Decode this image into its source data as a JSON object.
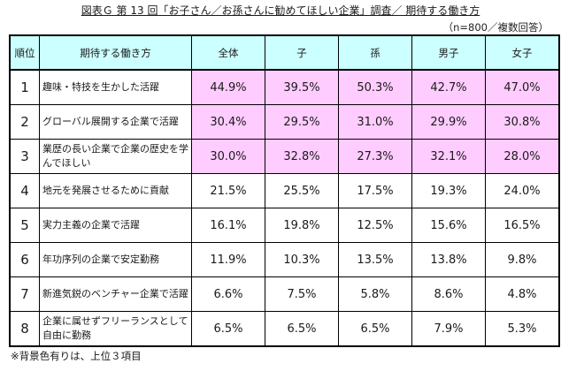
{
  "title": "図表Ｇ 第 13 回「お子さん／お孫さんに勧めてほしい企業」調査／ 期待する働き方",
  "sample_note": "（n=800／複数回答）",
  "table": {
    "headers": [
      "順位",
      "期待する働き方",
      "全体",
      "子",
      "孫",
      "男子",
      "女子"
    ],
    "rows": [
      {
        "rank": "1",
        "item": "趣味・特技を生かした活躍",
        "values": [
          "44.9%",
          "39.5%",
          "50.3%",
          "42.7%",
          "47.0%"
        ],
        "highlight": true
      },
      {
        "rank": "2",
        "item": "グローバル展開する企業で活躍",
        "values": [
          "30.4%",
          "29.5%",
          "31.0%",
          "29.9%",
          "30.8%"
        ],
        "highlight": true
      },
      {
        "rank": "3",
        "item": "業歴の長い企業で企業の歴史を学んでほしい",
        "values": [
          "30.0%",
          "32.8%",
          "27.3%",
          "32.1%",
          "28.0%"
        ],
        "highlight": true
      },
      {
        "rank": "4",
        "item": "地元を発展させるために貢献",
        "values": [
          "21.5%",
          "25.5%",
          "17.5%",
          "19.3%",
          "24.0%"
        ],
        "highlight": false
      },
      {
        "rank": "5",
        "item": "実力主義の企業で活躍",
        "values": [
          "16.1%",
          "19.8%",
          "12.5%",
          "15.6%",
          "16.5%"
        ],
        "highlight": false
      },
      {
        "rank": "6",
        "item": "年功序列の企業で安定勤務",
        "values": [
          "11.9%",
          "10.3%",
          "13.5%",
          "13.8%",
          "9.8%"
        ],
        "highlight": false
      },
      {
        "rank": "7",
        "item": "新進気鋭のベンチャー企業で活躍",
        "values": [
          "6.6%",
          "7.5%",
          "5.8%",
          "8.6%",
          "4.8%"
        ],
        "highlight": false
      },
      {
        "rank": "8",
        "item": "企業に属せずフリーランスとして自由に勤務",
        "values": [
          "6.5%",
          "6.5%",
          "6.5%",
          "7.9%",
          "5.3%"
        ],
        "highlight": false
      }
    ]
  },
  "footnote": "※背景色有りは、上位３項目",
  "colors": {
    "header_bg": "#ccffff",
    "highlight_bg": "#ffccff",
    "border": "#000000"
  }
}
